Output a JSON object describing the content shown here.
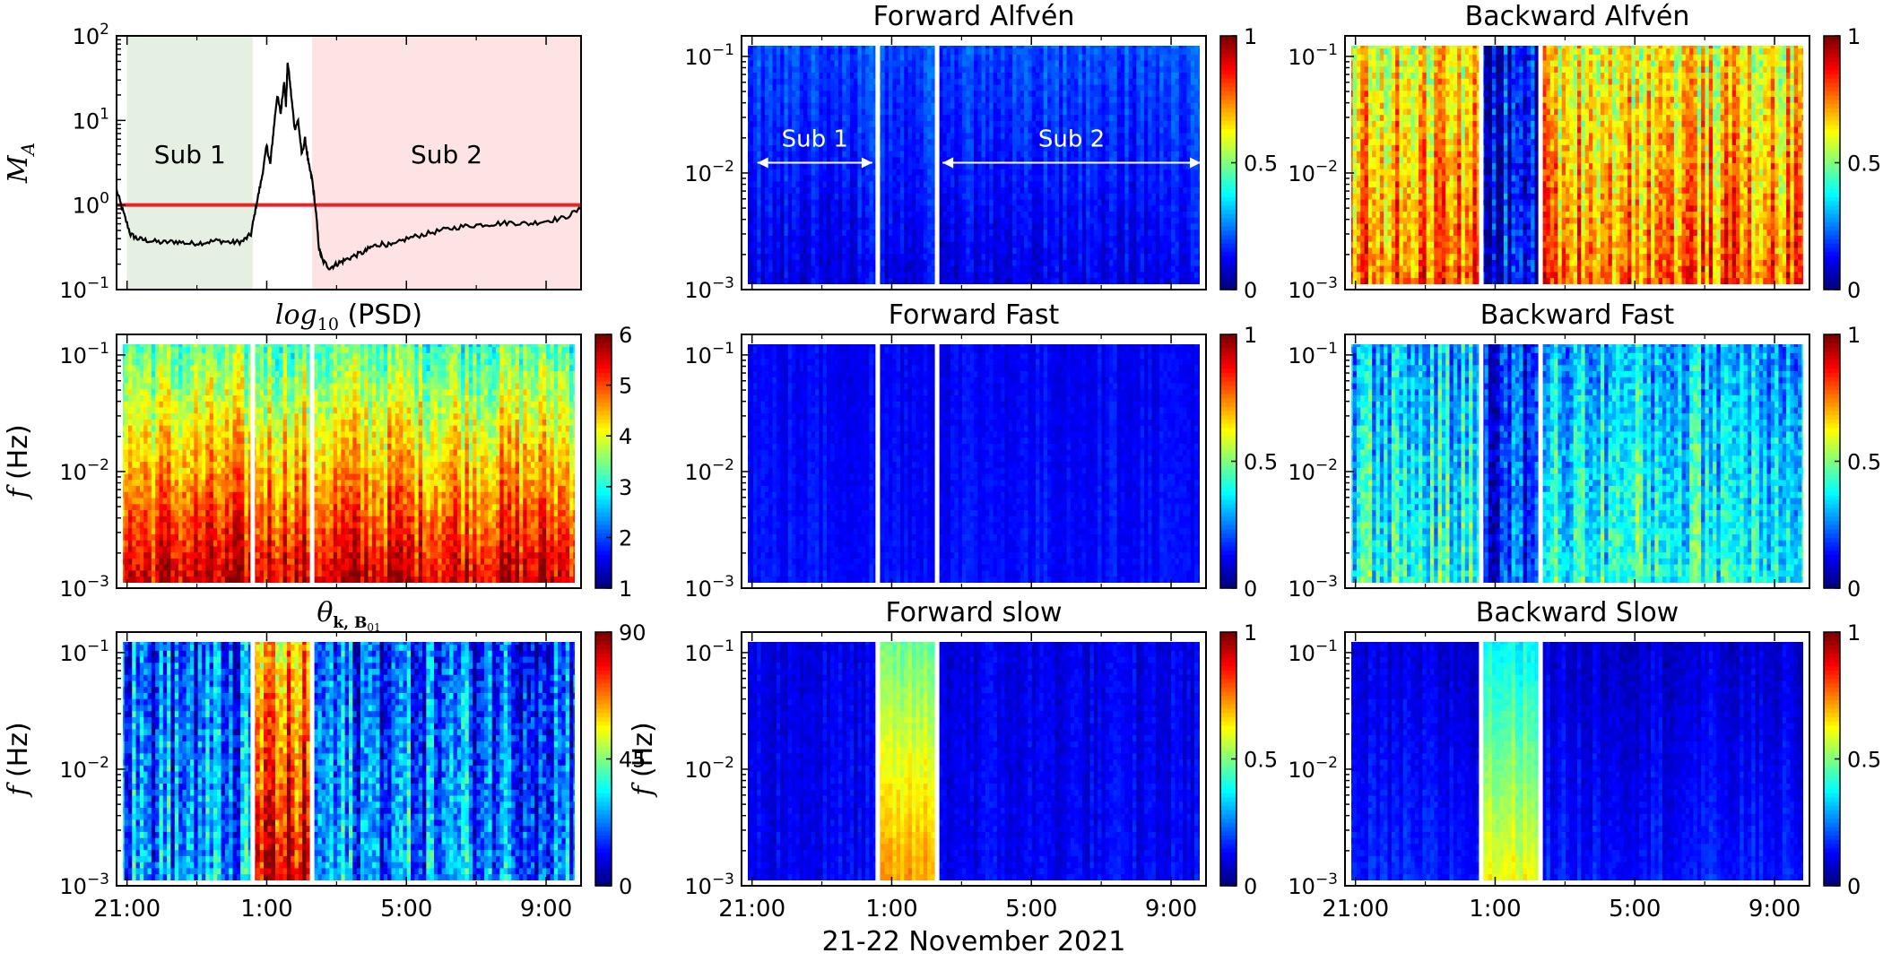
{
  "figure": {
    "footer": "21-22 November 2021",
    "x_tick_labels": [
      "21:00",
      "1:00",
      "5:00",
      "9:00"
    ],
    "colors": {
      "axis": "#000000",
      "ma_threshold": "#e8232a",
      "sub1_fill": "#e5f0e3",
      "sub2_fill": "#fde3e3",
      "gap_line": "#ffffff"
    }
  },
  "chart_data": [
    {
      "id": "ma",
      "type": "line",
      "title": "",
      "ylabel": "M_A",
      "yscale": "log",
      "ylim": [
        0.1,
        100
      ],
      "y_tick_labels": [
        "10^-1",
        "10^0",
        "10^1",
        "10^2"
      ],
      "x_unit": "hours since 21:00",
      "xlim": [
        -0.3,
        13.0
      ],
      "threshold": 1.0,
      "regions": [
        {
          "name": "Sub 1",
          "x_start": 0.0,
          "x_end": 3.6
        },
        {
          "name": "Sub 2",
          "x_start": 5.3,
          "x_end": 13.0
        }
      ],
      "series": [
        {
          "name": "M_A",
          "x": [
            -0.3,
            -0.1,
            0.1,
            0.3,
            0.6,
            1.0,
            1.4,
            1.8,
            2.2,
            2.6,
            3.0,
            3.3,
            3.55,
            3.7,
            3.85,
            4.0,
            4.1,
            4.2,
            4.3,
            4.4,
            4.5,
            4.55,
            4.6,
            4.7,
            4.8,
            4.9,
            5.0,
            5.1,
            5.2,
            5.3,
            5.4,
            5.5,
            5.6,
            5.8,
            6.0,
            6.2,
            6.5,
            6.8,
            7.0,
            7.3,
            7.6,
            8.0,
            8.5,
            9.0,
            9.5,
            10.0,
            10.5,
            11.0,
            11.5,
            12.0,
            12.5,
            13.0
          ],
          "y": [
            1.5,
            0.8,
            0.45,
            0.4,
            0.38,
            0.36,
            0.37,
            0.35,
            0.36,
            0.38,
            0.36,
            0.37,
            0.45,
            1.0,
            2.0,
            5.0,
            3.0,
            8.0,
            20.0,
            12.0,
            30.0,
            15.0,
            50.0,
            20.0,
            8.0,
            10.0,
            4.0,
            6.0,
            3.0,
            2.0,
            0.9,
            0.3,
            0.22,
            0.18,
            0.2,
            0.22,
            0.25,
            0.28,
            0.32,
            0.35,
            0.33,
            0.4,
            0.45,
            0.5,
            0.55,
            0.58,
            0.6,
            0.62,
            0.6,
            0.65,
            0.7,
            0.9
          ]
        }
      ]
    },
    {
      "id": "psd",
      "type": "heatmap",
      "title": "log10 (PSD)",
      "ylabel": "f (Hz)",
      "yscale": "log",
      "ylim": [
        0.001,
        0.15
      ],
      "y_tick_labels": [
        "10^-3",
        "10^-2",
        "10^-1"
      ],
      "colorbar": {
        "range": [
          1,
          6
        ],
        "tick_labels": [
          "1",
          "2",
          "3",
          "4",
          "5",
          "6"
        ]
      },
      "profile": {
        "low_f_level": 0.93,
        "high_f_level": 0.45,
        "noise": 0.14
      }
    },
    {
      "id": "theta",
      "type": "heatmap",
      "title": "θk, B01",
      "ylabel": "f (Hz)",
      "yscale": "log",
      "ylim": [
        0.001,
        0.15
      ],
      "y_tick_labels": [
        "10^-3",
        "10^-2",
        "10^-1"
      ],
      "colorbar": {
        "range": [
          0,
          90
        ],
        "tick_labels": [
          "0",
          "45",
          "90"
        ]
      },
      "profile": {
        "low_f_level": 0.28,
        "high_f_level": 0.2,
        "noise": 0.2,
        "middle_level": 0.9
      }
    },
    {
      "id": "fwd_alfven",
      "type": "heatmap",
      "title": "Forward Alfvén",
      "ylabel": "",
      "yscale": "log",
      "ylim": [
        0.001,
        0.15
      ],
      "y_tick_labels": [
        "10^-3",
        "10^-2",
        "10^-1"
      ],
      "colorbar": {
        "range": [
          0,
          1
        ],
        "tick_labels": [
          "0",
          "0.5",
          "1"
        ]
      },
      "annotations": [
        {
          "text": "Sub 1",
          "x_start": 0.0,
          "x_end": 3.6
        },
        {
          "text": "Sub 2",
          "x_start": 5.3,
          "x_end": 13.0
        }
      ],
      "profile": {
        "low_f_level": 0.1,
        "high_f_level": 0.2,
        "noise": 0.06
      }
    },
    {
      "id": "bwd_alfven",
      "type": "heatmap",
      "title": "Backward Alfvén",
      "ylabel": "",
      "yscale": "log",
      "ylim": [
        0.001,
        0.15
      ],
      "y_tick_labels": [
        "10^-3",
        "10^-2",
        "10^-1"
      ],
      "colorbar": {
        "range": [
          0,
          1
        ],
        "tick_labels": [
          "0",
          "0.5",
          "1"
        ]
      },
      "profile": {
        "low_f_level": 0.78,
        "high_f_level": 0.62,
        "noise": 0.17,
        "middle_level": 0.12
      }
    },
    {
      "id": "fwd_fast",
      "type": "heatmap",
      "title": "Forward Fast",
      "ylabel": "",
      "yscale": "log",
      "ylim": [
        0.001,
        0.15
      ],
      "y_tick_labels": [
        "10^-3",
        "10^-2",
        "10^-1"
      ],
      "colorbar": {
        "range": [
          0,
          1
        ],
        "tick_labels": [
          "0",
          "0.5",
          "1"
        ]
      },
      "profile": {
        "low_f_level": 0.14,
        "high_f_level": 0.12,
        "noise": 0.04
      }
    },
    {
      "id": "bwd_fast",
      "type": "heatmap",
      "title": "Backward Fast",
      "ylabel": "",
      "yscale": "log",
      "ylim": [
        0.001,
        0.15
      ],
      "y_tick_labels": [
        "10^-3",
        "10^-2",
        "10^-1"
      ],
      "colorbar": {
        "range": [
          0,
          1
        ],
        "tick_labels": [
          "0",
          "0.5",
          "1"
        ]
      },
      "profile": {
        "low_f_level": 0.42,
        "high_f_level": 0.3,
        "noise": 0.16,
        "middle_level": 0.18
      }
    },
    {
      "id": "fwd_slow",
      "type": "heatmap",
      "title": "Forward slow",
      "ylabel": "f (Hz)",
      "yscale": "log",
      "ylim": [
        0.001,
        0.15
      ],
      "y_tick_labels": [
        "10^-3",
        "10^-2",
        "10^-1"
      ],
      "colorbar": {
        "range": [
          0,
          1
        ],
        "tick_labels": [
          "0",
          "0.5",
          "1"
        ]
      },
      "profile": {
        "low_f_level": 0.12,
        "high_f_level": 0.1,
        "noise": 0.05,
        "middle_level": 0.72
      }
    },
    {
      "id": "bwd_slow",
      "type": "heatmap",
      "title": "Backward Slow",
      "ylabel": "",
      "yscale": "log",
      "ylim": [
        0.001,
        0.15
      ],
      "y_tick_labels": [
        "10^-3",
        "10^-2",
        "10^-1"
      ],
      "colorbar": {
        "range": [
          0,
          1
        ],
        "tick_labels": [
          "0",
          "0.5",
          "1"
        ]
      },
      "profile": {
        "low_f_level": 0.15,
        "high_f_level": 0.08,
        "noise": 0.05,
        "middle_level": 0.62
      }
    }
  ]
}
